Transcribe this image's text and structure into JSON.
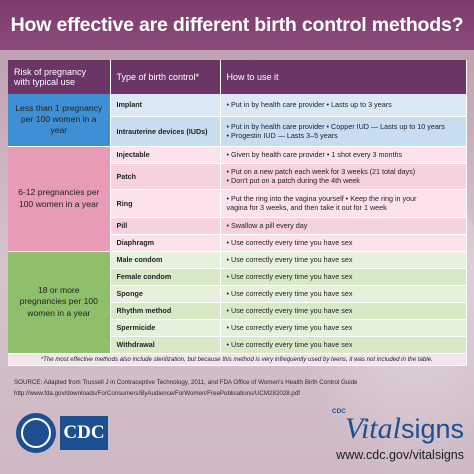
{
  "title": "How effective are different birth control methods?",
  "table": {
    "headers": [
      "Risk of pregnancy with typical use",
      "Type of birth control*",
      "How to use it"
    ],
    "risk_groups": [
      "Less than 1 pregnancy per 100 women in a year",
      "6-12 pregnancies per 100 women in a year",
      "18 or more pregnancies per 100 women in a year"
    ],
    "rows": [
      {
        "method": "Implant",
        "use": [
          "• Put in by health care provider  • Lasts up to 3 years"
        ]
      },
      {
        "method": "Intrauterine devices (IUDs)",
        "use": [
          "• Put in by health care provider  • Copper IUD — Lasts up to 10 years",
          "• Progestin IUD — Lasts 3–5 years"
        ]
      },
      {
        "method": "Injectable",
        "use": [
          "• Given by health care provider  • 1 shot every 3 months"
        ]
      },
      {
        "method": "Patch",
        "use": [
          "• Put on a new patch each week for 3 weeks (21 total days)",
          "• Don't put on a patch during the 4th week"
        ]
      },
      {
        "method": "Ring",
        "use": [
          "• Put the ring into the vagina yourself  • Keep the ring in your",
          "vagina for 3 weeks, and then take it out for 1 week"
        ]
      },
      {
        "method": "Pill",
        "use": [
          "• Swallow a pill every day"
        ]
      },
      {
        "method": "Diaphragm",
        "use": [
          "• Use correctly every time you have sex"
        ]
      },
      {
        "method": "Male condom",
        "use": [
          "• Use correctly every time you have sex"
        ]
      },
      {
        "method": "Female condom",
        "use": [
          "• Use correctly every time you have sex"
        ]
      },
      {
        "method": "Sponge",
        "use": [
          "• Use correctly every time you have sex"
        ]
      },
      {
        "method": "Rhythm method",
        "use": [
          "• Use correctly every time you have sex"
        ]
      },
      {
        "method": "Spermicide",
        "use": [
          "• Use correctly every time you have sex"
        ]
      },
      {
        "method": "Withdrawal",
        "use": [
          "• Use correctly every time you have sex"
        ]
      }
    ],
    "footnote": "*The most effective methods also include sterilization, but because this method is very infrequently used by teens, it was not included in the table."
  },
  "source": {
    "line1": "SOURCE: Adapted from Trussell J in Contraceptive Technology, 2011, and FDA Office of Women's Health Birth Control Guide",
    "line2": "http://www.fda.gov/downloads/ForConsumers/ByAudience/ForWomen/FreePublications/UCM282028.pdf"
  },
  "logo": {
    "cdc": "CDC",
    "hhs_icon": "hhs-eagle-icon"
  },
  "vitalsigns": {
    "small": "CDC",
    "word1": "Vital",
    "word2": "signs",
    "url": "www.cdc.gov/vitalsigns"
  },
  "colors": {
    "header_purple": "#6b3566",
    "group_blue": "#3f8fd4",
    "group_pink": "#e79bb6",
    "group_green": "#8ec06b",
    "brand_blue": "#1d4f91"
  }
}
